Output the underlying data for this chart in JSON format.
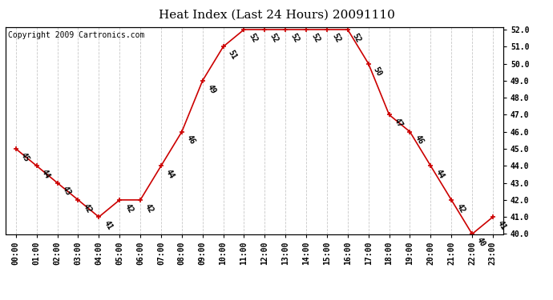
{
  "title": "Heat Index (Last 24 Hours) 20091110",
  "copyright_text": "Copyright 2009 Cartronics.com",
  "hours": [
    "00:00",
    "01:00",
    "02:00",
    "03:00",
    "04:00",
    "05:00",
    "06:00",
    "07:00",
    "08:00",
    "09:00",
    "10:00",
    "11:00",
    "12:00",
    "13:00",
    "14:00",
    "15:00",
    "16:00",
    "17:00",
    "18:00",
    "19:00",
    "20:00",
    "21:00",
    "22:00",
    "23:00"
  ],
  "values": [
    45,
    44,
    43,
    42,
    41,
    42,
    42,
    44,
    46,
    49,
    51,
    52,
    52,
    52,
    52,
    52,
    52,
    50,
    47,
    46,
    44,
    42,
    40,
    41
  ],
  "ylim_min": 40.0,
  "ylim_max": 52.0,
  "ytick_interval": 1.0,
  "line_color": "#cc0000",
  "marker_color": "#cc0000",
  "background_color": "#ffffff",
  "grid_color": "#c8c8c8",
  "title_fontsize": 11,
  "label_fontsize": 7,
  "tick_fontsize": 7,
  "copyright_fontsize": 7
}
